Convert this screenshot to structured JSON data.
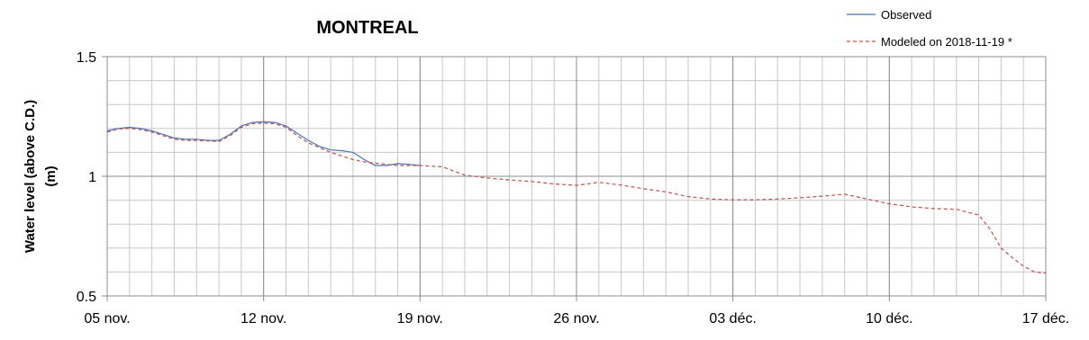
{
  "chart_data": {
    "type": "line",
    "title": "MONTREAL",
    "ylabel": [
      "Water level (above C.D.)",
      "(m)"
    ],
    "xlim": [
      0,
      42
    ],
    "xticks": [
      {
        "value": 0,
        "label": "05 nov."
      },
      {
        "value": 7,
        "label": "12 nov."
      },
      {
        "value": 14,
        "label": "19 nov."
      },
      {
        "value": 21,
        "label": "26 nov."
      },
      {
        "value": 28,
        "label": "03 déc."
      },
      {
        "value": 35,
        "label": "10 déc."
      },
      {
        "value": 42,
        "label": "17 déc."
      }
    ],
    "x_minor_step": 1,
    "ylim": [
      0.5,
      1.5
    ],
    "yticks": [
      0.5,
      1,
      1.5
    ],
    "y_minor_step": 0.1,
    "grid": true,
    "legend": "top-right",
    "series": [
      {
        "name": "Observed",
        "color": "#4a74b8",
        "style": "solid",
        "x": [
          0,
          0.5,
          1,
          1.5,
          2,
          2.5,
          3,
          3.5,
          4,
          4.5,
          5,
          5.5,
          6,
          6.5,
          7,
          7.5,
          8,
          8.5,
          9,
          9.5,
          10,
          10.5,
          11,
          11.5,
          12,
          12.5,
          13,
          13.5,
          14
        ],
        "values": [
          1.19,
          1.2,
          1.205,
          1.2,
          1.19,
          1.175,
          1.16,
          1.155,
          1.155,
          1.15,
          1.15,
          1.175,
          1.21,
          1.225,
          1.228,
          1.225,
          1.21,
          1.18,
          1.15,
          1.125,
          1.11,
          1.107,
          1.1,
          1.07,
          1.045,
          1.045,
          1.053,
          1.05,
          1.045
        ]
      },
      {
        "name": "Modeled on 2018-11-19 *",
        "color": "#c0504d",
        "style": "dashed",
        "x": [
          0,
          0.5,
          1,
          1.5,
          2,
          2.5,
          3,
          3.5,
          4,
          4.5,
          5,
          5.5,
          6,
          6.5,
          7,
          7.5,
          8,
          8.5,
          9,
          9.5,
          10,
          10.5,
          11,
          11.5,
          12,
          12.5,
          13,
          13.5,
          14,
          15,
          16,
          17,
          18,
          19,
          20,
          21,
          22,
          23,
          24,
          25,
          26,
          27,
          28,
          29,
          30,
          31,
          32,
          33,
          34,
          35,
          36,
          37,
          38,
          39,
          39.5,
          40,
          40.5,
          41,
          41.5,
          42
        ],
        "values": [
          1.185,
          1.198,
          1.2,
          1.195,
          1.185,
          1.17,
          1.155,
          1.15,
          1.15,
          1.148,
          1.145,
          1.17,
          1.205,
          1.22,
          1.222,
          1.22,
          1.205,
          1.17,
          1.14,
          1.12,
          1.1,
          1.085,
          1.07,
          1.06,
          1.055,
          1.05,
          1.045,
          1.045,
          1.045,
          1.04,
          1.005,
          0.993,
          0.985,
          0.978,
          0.968,
          0.962,
          0.975,
          0.963,
          0.948,
          0.935,
          0.915,
          0.905,
          0.902,
          0.902,
          0.905,
          0.91,
          0.917,
          0.925,
          0.905,
          0.885,
          0.872,
          0.865,
          0.862,
          0.838,
          0.78,
          0.7,
          0.66,
          0.625,
          0.6,
          0.595
        ]
      }
    ]
  }
}
